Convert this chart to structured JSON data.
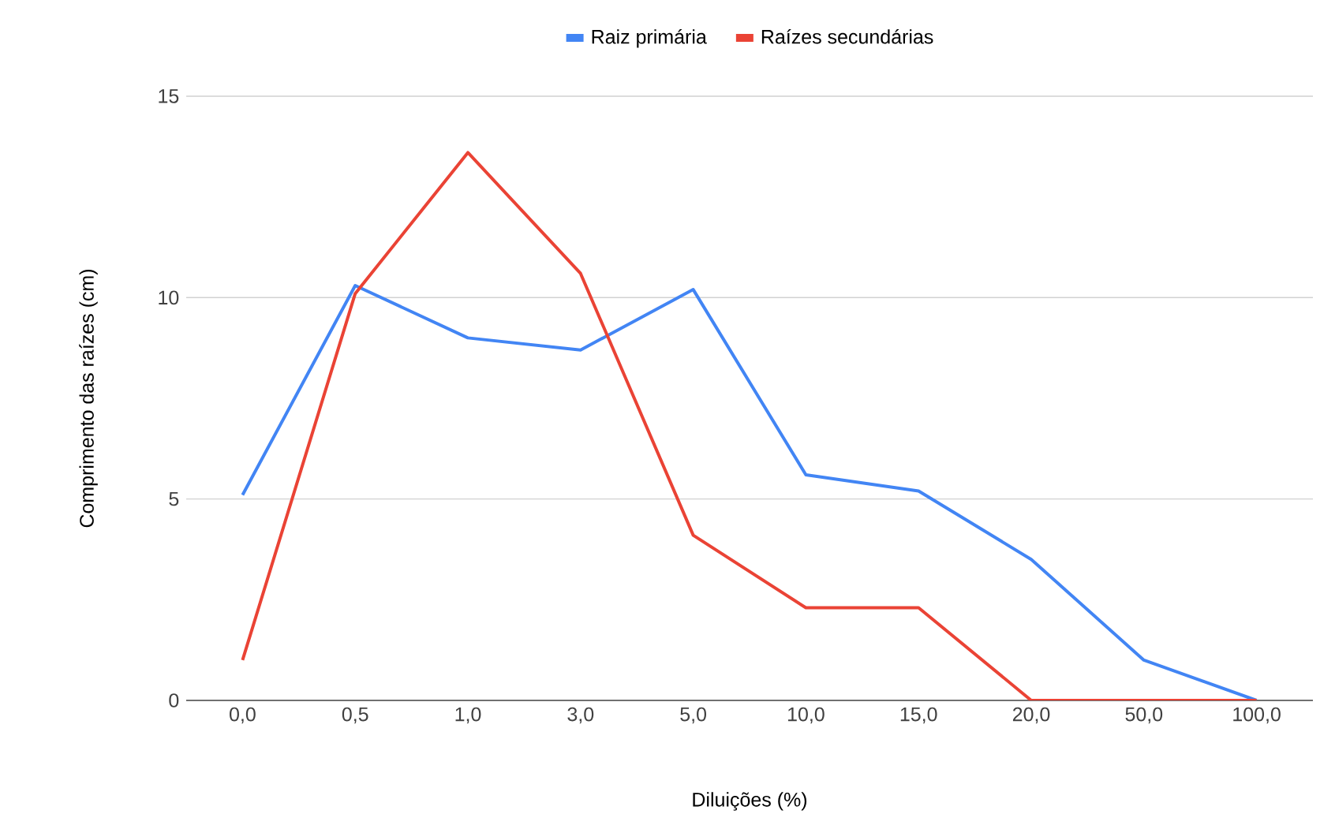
{
  "chart_data": {
    "type": "line",
    "xlabel": "Diluições (%)",
    "ylabel": "Comprimento das raízes (cm)",
    "categories": [
      "0,0",
      "0,5",
      "1,0",
      "3,0",
      "5,0",
      "10,0",
      "15,0",
      "20,0",
      "50,0",
      "100,0"
    ],
    "series": [
      {
        "name": "Raiz primária",
        "color": "#4285f4",
        "values": [
          5.1,
          10.3,
          9.0,
          8.7,
          10.2,
          5.6,
          5.2,
          3.5,
          1.0,
          0
        ]
      },
      {
        "name": "Raízes secundárias",
        "color": "#ea4335",
        "values": [
          1.0,
          10.1,
          13.6,
          10.6,
          4.1,
          2.3,
          2.3,
          0,
          0,
          0
        ]
      }
    ],
    "ylim": [
      0,
      15
    ],
    "yticks": [
      0,
      5,
      10,
      15
    ],
    "grid": "y",
    "legend": "top",
    "marker": "none",
    "line_style": "solid"
  }
}
